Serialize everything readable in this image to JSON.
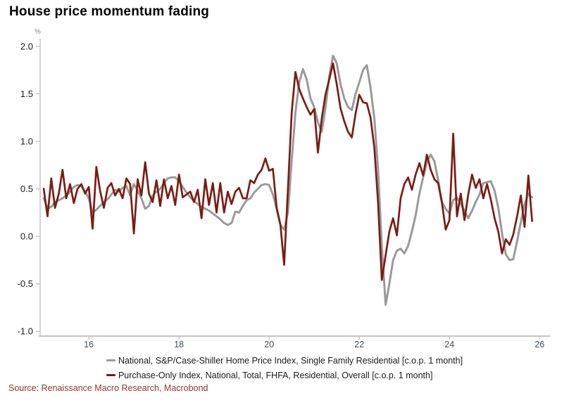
{
  "title": "House price momentum fading",
  "source": "Source: Renaissance Macro Research, Macrobond",
  "colors": {
    "series_gray": "#9a9a9a",
    "series_red": "#7a1c12",
    "axis": "#c6c6c6",
    "y_label": "#1a1a1a",
    "x_label": "#44505a",
    "unit_label": "#8a8a8a",
    "source_text": "#963428",
    "title_text": "#000000",
    "background": "#ffffff"
  },
  "chart_data": {
    "type": "line",
    "title": "House price momentum fading",
    "xlabel": "",
    "ylabel": "%",
    "grid": false,
    "legend_position": "bottom",
    "x_start_year": 2015.0,
    "x_step_years": 0.0833333,
    "xlim": [
      2014.92,
      2026.23
    ],
    "ylim": [
      -1.05,
      2.08
    ],
    "x_ticks": [
      {
        "value": 2016,
        "label": "16"
      },
      {
        "value": 2018,
        "label": "18"
      },
      {
        "value": 2020,
        "label": "20"
      },
      {
        "value": 2022,
        "label": "22"
      },
      {
        "value": 2024,
        "label": "24"
      },
      {
        "value": 2026,
        "label": "26"
      }
    ],
    "y_ticks": [
      {
        "value": 2.0,
        "label": "2.0"
      },
      {
        "value": 1.5,
        "label": "1.5"
      },
      {
        "value": 1.0,
        "label": "1.0"
      },
      {
        "value": 0.5,
        "label": "0.5"
      },
      {
        "value": 0.0,
        "label": "0.0"
      },
      {
        "value": -0.5,
        "label": "-0.5"
      },
      {
        "value": -1.0,
        "label": "-1.0"
      }
    ],
    "series": [
      {
        "name": "National, S&P/Case-Shiller Home Price Index, Single Family Residential [c.o.p. 1 month]",
        "color": "#9a9a9a",
        "width": 3,
        "values": [
          0.4,
          0.29,
          0.31,
          0.36,
          0.38,
          0.4,
          0.43,
          0.47,
          0.52,
          0.54,
          0.53,
          0.47,
          0.4,
          0.25,
          0.28,
          0.32,
          0.36,
          0.39,
          0.44,
          0.49,
          0.47,
          0.51,
          0.53,
          0.43,
          0.55,
          0.48,
          0.4,
          0.29,
          0.32,
          0.43,
          0.47,
          0.5,
          0.56,
          0.61,
          0.62,
          0.62,
          0.58,
          0.52,
          0.46,
          0.41,
          0.37,
          0.34,
          0.31,
          0.29,
          0.27,
          0.24,
          0.21,
          0.18,
          0.14,
          0.12,
          0.14,
          0.26,
          0.25,
          0.32,
          0.38,
          0.4,
          0.46,
          0.5,
          0.54,
          0.55,
          0.54,
          0.44,
          0.29,
          0.12,
          0.07,
          0.25,
          0.8,
          1.3,
          1.62,
          1.76,
          1.65,
          1.45,
          1.36,
          1.2,
          1.1,
          1.35,
          1.68,
          1.9,
          1.82,
          1.6,
          1.45,
          1.36,
          1.33,
          1.5,
          1.62,
          1.75,
          1.8,
          1.56,
          1.24,
          0.7,
          -0.1,
          -0.72,
          -0.5,
          -0.25,
          -0.15,
          -0.13,
          -0.18,
          -0.1,
          0.05,
          0.22,
          0.45,
          0.62,
          0.78,
          0.86,
          0.79,
          0.59,
          0.36,
          0.29,
          0.24,
          0.38,
          0.41,
          0.34,
          0.27,
          0.19,
          0.27,
          0.36,
          0.44,
          0.56,
          0.57,
          0.58,
          0.48,
          0.3,
          0.03,
          -0.19,
          -0.25,
          -0.24,
          -0.05,
          0.15,
          0.34,
          0.45,
          0.41
        ]
      },
      {
        "name": "Purchase-Only Index, National, Total, FHFA, Residential, Overall [c.o.p. 1 month]",
        "color": "#7a1c12",
        "width": 2.7,
        "values": [
          0.5,
          0.21,
          0.61,
          0.3,
          0.45,
          0.7,
          0.4,
          0.55,
          0.35,
          0.5,
          0.55,
          0.45,
          0.52,
          0.08,
          0.73,
          0.48,
          0.3,
          0.51,
          0.56,
          0.43,
          0.5,
          0.4,
          0.61,
          0.55,
          0.03,
          0.6,
          0.43,
          0.78,
          0.45,
          0.36,
          0.59,
          0.32,
          0.6,
          0.4,
          0.53,
          0.33,
          0.65,
          0.41,
          0.44,
          0.47,
          0.36,
          0.49,
          0.19,
          0.6,
          0.33,
          0.56,
          0.25,
          0.56,
          0.25,
          0.47,
          0.34,
          0.47,
          0.51,
          0.4,
          0.4,
          0.59,
          0.56,
          0.65,
          0.7,
          0.82,
          0.69,
          0.71,
          0.3,
          0.12,
          -0.3,
          0.5,
          1.3,
          1.73,
          1.55,
          1.45,
          1.36,
          1.28,
          1.34,
          0.88,
          1.24,
          1.49,
          1.65,
          1.82,
          1.6,
          1.35,
          1.21,
          1.1,
          1.04,
          1.29,
          1.49,
          1.41,
          1.4,
          1.25,
          0.93,
          0.35,
          -0.46,
          -0.2,
          0.05,
          0.19,
          0.01,
          0.4,
          0.55,
          0.62,
          0.49,
          0.65,
          0.77,
          0.64,
          0.86,
          0.7,
          0.6,
          0.56,
          0.35,
          0.07,
          0.17,
          1.08,
          0.21,
          0.45,
          0.17,
          0.44,
          0.65,
          0.51,
          0.6,
          0.4,
          0.55,
          0.39,
          0.19,
          0.05,
          -0.18,
          -0.03,
          -0.09,
          0.02,
          0.21,
          0.43,
          0.1,
          0.64,
          0.16
        ]
      }
    ]
  }
}
